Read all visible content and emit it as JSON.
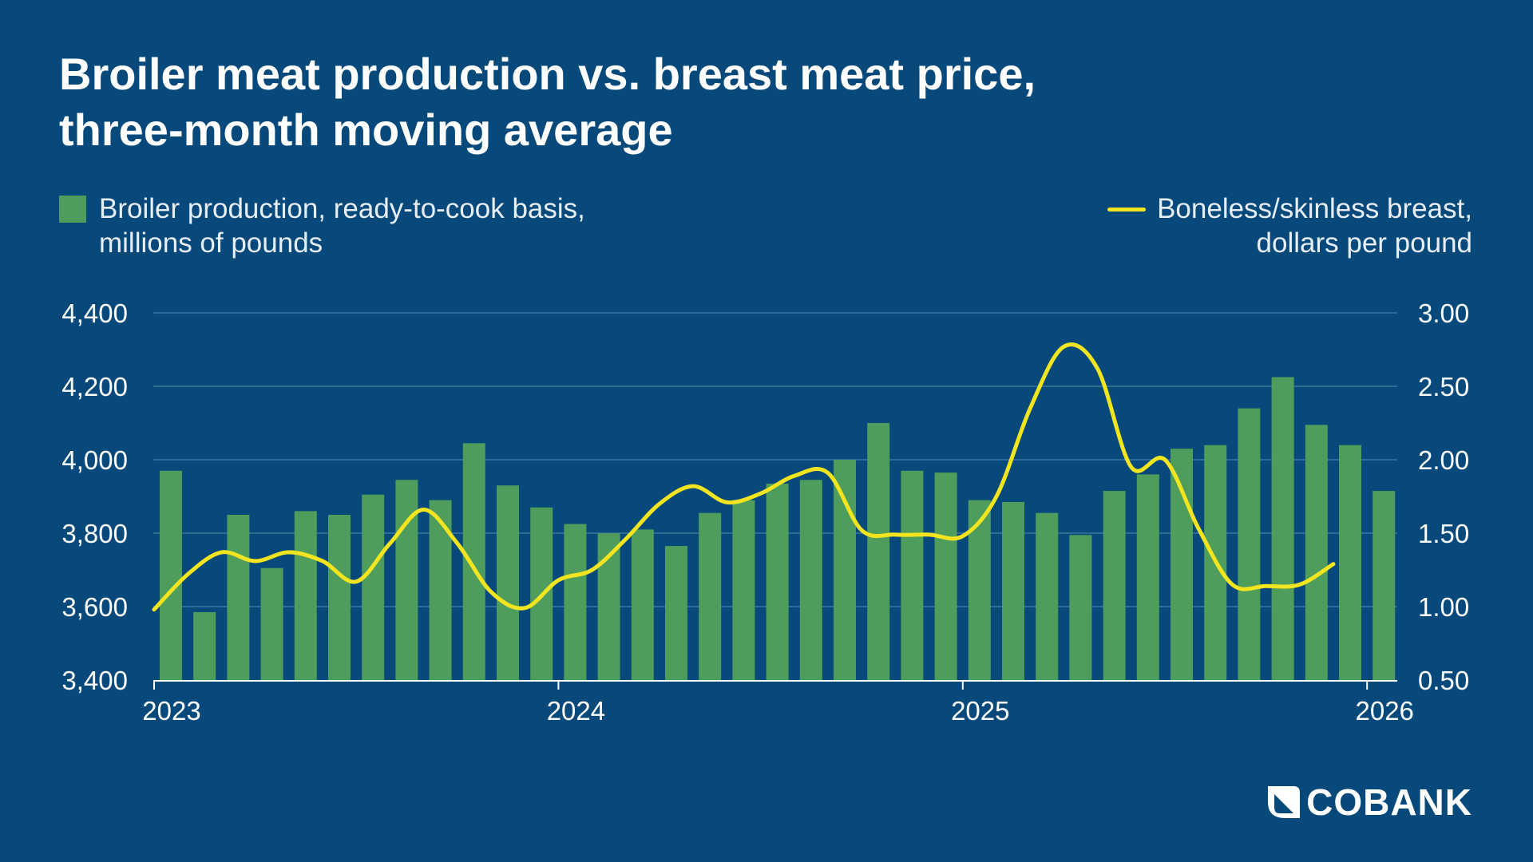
{
  "title_line1": "Broiler meat production vs. breast meat price,",
  "title_line2": "three-month moving average",
  "legend": {
    "bars_line1": "Broiler production, ready-to-cook basis,",
    "bars_line2": "millions of pounds",
    "line_line1": "Boneless/skinless breast,",
    "line_line2": "dollars per pound"
  },
  "logo": {
    "text": "COBANK"
  },
  "colors": {
    "background": "#06497a",
    "bars": "#4f9d5c",
    "line": "#f2e520",
    "grid": "#3f77a0"
  },
  "chart_data": {
    "type": "bar+line",
    "x_start": "2023-01",
    "x_ticks": [
      "2023",
      "2024",
      "2025",
      "2026"
    ],
    "left_axis": {
      "ticks": [
        "3,400",
        "3,600",
        "3,800",
        "4,000",
        "4,200",
        "4,400"
      ],
      "range": [
        3400,
        4400
      ]
    },
    "right_axis": {
      "ticks": [
        "0.50",
        "1.00",
        "1.50",
        "2.00",
        "2.50",
        "3.00"
      ],
      "range": [
        0.5,
        3.0
      ]
    },
    "grid": true,
    "months": [
      "2023-01",
      "2023-02",
      "2023-03",
      "2023-04",
      "2023-05",
      "2023-06",
      "2023-07",
      "2023-08",
      "2023-09",
      "2023-10",
      "2023-11",
      "2023-12",
      "2024-01",
      "2024-02",
      "2024-03",
      "2024-04",
      "2024-05",
      "2024-06",
      "2024-07",
      "2024-08",
      "2024-09",
      "2024-10",
      "2024-11",
      "2024-12",
      "2025-01",
      "2025-02",
      "2025-03",
      "2025-04",
      "2025-05",
      "2025-06",
      "2025-07",
      "2025-08",
      "2025-09",
      "2025-10",
      "2025-11",
      "2025-12",
      "2026-01"
    ],
    "bars": [
      3970,
      3585,
      3850,
      3705,
      3860,
      3850,
      3905,
      3945,
      3890,
      4045,
      3930,
      3870,
      3825,
      3800,
      3810,
      3765,
      3855,
      3890,
      3935,
      3945,
      4000,
      4100,
      3970,
      3965,
      3890,
      3885,
      3855,
      3795,
      3915,
      3960,
      4030,
      4040,
      4140,
      4225,
      4095,
      4040,
      3915
    ],
    "line": [
      0.98,
      1.22,
      1.37,
      1.31,
      1.37,
      1.31,
      1.17,
      1.43,
      1.66,
      1.43,
      1.1,
      0.99,
      1.18,
      1.25,
      1.46,
      1.7,
      1.82,
      1.71,
      1.77,
      1.89,
      1.91,
      1.52,
      1.49,
      1.49,
      1.48,
      1.75,
      2.35,
      2.77,
      2.62,
      1.95,
      2.0,
      1.53,
      1.15,
      1.14,
      1.15,
      1.29
    ]
  }
}
